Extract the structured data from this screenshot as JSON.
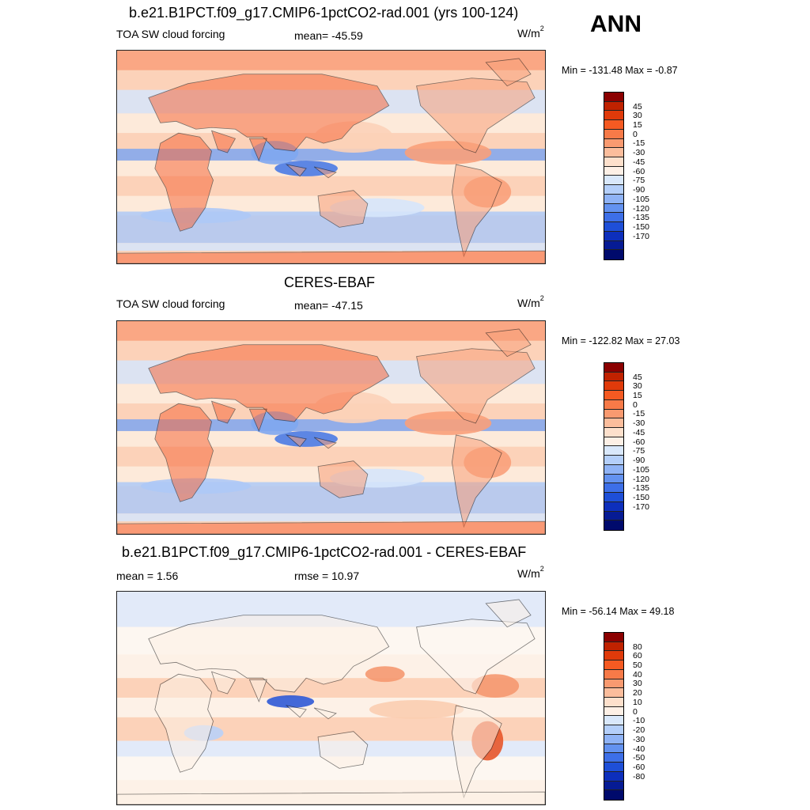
{
  "season": "ANN",
  "panels": [
    {
      "title": "b.e21.B1PCT.f09_g17.CMIP6-1pctCO2-rad.001 (yrs 100-124)",
      "left_label": "TOA SW cloud forcing",
      "center_label": "mean= -45.59",
      "units": "W/m",
      "units_sup": "2",
      "minmax": "Min = -131.48 Max =  -0.87",
      "colorbar": {
        "labels": [
          "45",
          "30",
          "15",
          "0",
          "-15",
          "-30",
          "-45",
          "-60",
          "-75",
          "-90",
          "-105",
          "-120",
          "-135",
          "-150",
          "-170"
        ],
        "colors": [
          "#8b0000",
          "#c02200",
          "#e03a0a",
          "#f55a22",
          "#f77a48",
          "#f99a70",
          "#fbbd9c",
          "#fde0cc",
          "#fdf0e6",
          "#d9e8fb",
          "#b4cffa",
          "#8fb3f6",
          "#6392f0",
          "#3d6fe8",
          "#1e4fd8",
          "#0d2fbc",
          "#061b94",
          "#000a6c"
        ]
      },
      "palette": [
        "#f76b3f",
        "#f9a07a",
        "#fcd2b8",
        "#fdeedf",
        "#d6e6fb",
        "#aec9f6",
        "#7fa7f0",
        "#4b7be4",
        "#1f4fcf"
      ],
      "stats": {
        "mean": -45.59,
        "min": -131.48,
        "max": -0.87
      }
    },
    {
      "title": "CERES-EBAF",
      "left_label": "TOA SW cloud forcing",
      "center_label": "mean= -47.15",
      "units": "W/m",
      "units_sup": "2",
      "minmax": "Min = -122.82 Max =  27.03",
      "colorbar": {
        "labels": [
          "45",
          "30",
          "15",
          "0",
          "-15",
          "-30",
          "-45",
          "-60",
          "-75",
          "-90",
          "-105",
          "-120",
          "-135",
          "-150",
          "-170"
        ],
        "colors": [
          "#8b0000",
          "#c02200",
          "#e03a0a",
          "#f55a22",
          "#f77a48",
          "#f99a70",
          "#fbbd9c",
          "#fde0cc",
          "#fdf0e6",
          "#d9e8fb",
          "#b4cffa",
          "#8fb3f6",
          "#6392f0",
          "#3d6fe8",
          "#1e4fd8",
          "#0d2fbc",
          "#061b94",
          "#000a6c"
        ]
      },
      "palette": [
        "#f76b3f",
        "#f9a07a",
        "#fcd2b8",
        "#fdeedf",
        "#d6e6fb",
        "#aec9f6",
        "#7fa7f0",
        "#4b7be4",
        "#1f4fcf"
      ],
      "stats": {
        "mean": -47.15,
        "min": -122.82,
        "max": 27.03
      }
    },
    {
      "title": "b.e21.B1PCT.f09_g17.CMIP6-1pctCO2-rad.001 - CERES-EBAF",
      "left_label": "mean =   1.56",
      "center_label": "rmse =  10.97",
      "units": "W/m",
      "units_sup": "2",
      "minmax": "Min = -56.14 Max =  49.18",
      "colorbar": {
        "labels": [
          "80",
          "60",
          "50",
          "40",
          "30",
          "20",
          "10",
          "0",
          "-10",
          "-20",
          "-30",
          "-40",
          "-50",
          "-60",
          "-80"
        ],
        "colors": [
          "#8b0000",
          "#c02200",
          "#e03a0a",
          "#f55a22",
          "#f77a48",
          "#f99a70",
          "#fbbd9c",
          "#fde0cc",
          "#fdf0e6",
          "#d9e8fb",
          "#b4cffa",
          "#8fb3f6",
          "#6392f0",
          "#3d6fe8",
          "#1e4fd8",
          "#0d2fbc",
          "#061b94",
          "#000a6c"
        ]
      },
      "palette": [
        "#e8562a",
        "#f59870",
        "#fbcdb0",
        "#fdf1e6",
        "#fdf8f2",
        "#dde9fb",
        "#b9d0f8",
        "#89aaf2",
        "#2f59d6"
      ],
      "stats": {
        "mean": 1.56,
        "rmse": 10.97,
        "min": -56.14,
        "max": 49.18
      }
    }
  ]
}
